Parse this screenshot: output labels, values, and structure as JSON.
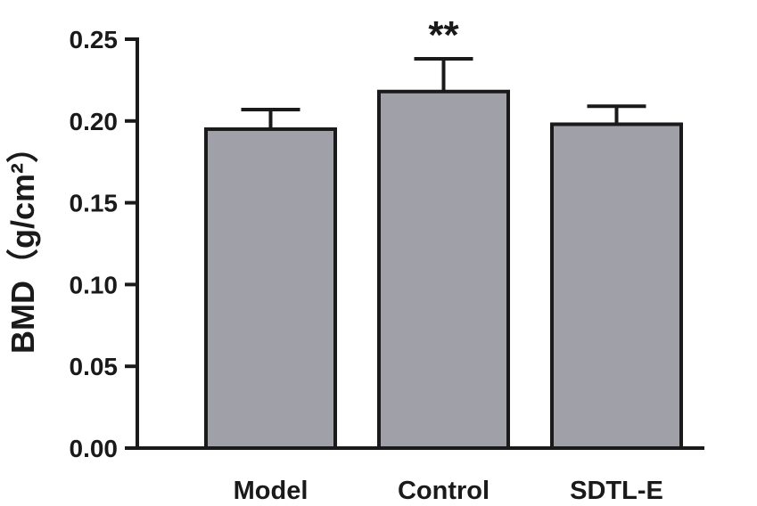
{
  "chart_data": {
    "type": "bar",
    "categories": [
      "Model",
      "Control",
      "SDTL-E"
    ],
    "values": [
      0.195,
      0.218,
      0.198
    ],
    "error_bars": [
      0.012,
      0.02,
      0.011
    ],
    "annotations": [
      "",
      "**",
      ""
    ],
    "ylabel": "BMD（g/cm²）",
    "ylim": [
      0,
      0.25
    ],
    "yticks": [
      0.0,
      0.05,
      0.1,
      0.15,
      0.2,
      0.25
    ],
    "ytick_labels": [
      "0.00",
      "0.05",
      "0.10",
      "0.15",
      "0.20",
      "0.25"
    ],
    "grid": false,
    "bar_color": "#a0a0a8",
    "edge_color": "#1a1a1a"
  }
}
